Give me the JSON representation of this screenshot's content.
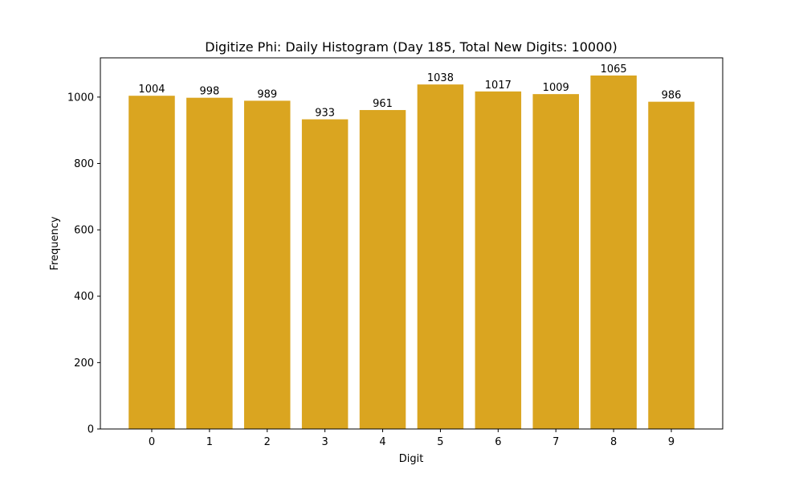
{
  "chart_data": {
    "type": "bar",
    "title": "Digitize Phi: Daily Histogram (Day 185, Total New Digits: 10000)",
    "x_label": "Digit",
    "y_label": "Frequency",
    "categories": [
      "0",
      "1",
      "2",
      "3",
      "4",
      "5",
      "6",
      "7",
      "8",
      "9"
    ],
    "values": [
      1004,
      998,
      989,
      933,
      961,
      1038,
      1017,
      1009,
      1065,
      986
    ],
    "color": "#DAA520",
    "ylim": [
      0,
      1118.25
    ],
    "yticks": [
      0,
      200,
      400,
      600,
      800,
      1000
    ],
    "grid": false
  }
}
